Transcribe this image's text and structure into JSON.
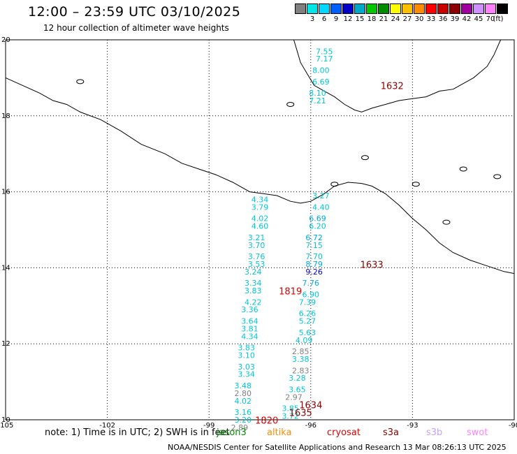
{
  "header": {
    "title": "12:00 – 23:59 UTC 03/10/2025",
    "subtitle": "12 hour collection of altimeter wave heights"
  },
  "color_scale": {
    "unit_label": "(ft)",
    "bins": [
      {
        "label": "",
        "color": "#808080"
      },
      {
        "label": "3",
        "color": "#00e5e5"
      },
      {
        "label": "6",
        "color": "#00d8ff"
      },
      {
        "label": "9",
        "color": "#0060ff"
      },
      {
        "label": "12",
        "color": "#0000c8"
      },
      {
        "label": "15",
        "color": "#00a8c8"
      },
      {
        "label": "18",
        "color": "#00c800"
      },
      {
        "label": "21",
        "color": "#008c00"
      },
      {
        "label": "24",
        "color": "#ffff00"
      },
      {
        "label": "27",
        "color": "#ffc000"
      },
      {
        "label": "30",
        "color": "#ff8c00"
      },
      {
        "label": "33",
        "color": "#ff0000"
      },
      {
        "label": "36",
        "color": "#c80000"
      },
      {
        "label": "39",
        "color": "#8c0000"
      },
      {
        "label": "42",
        "color": "#a000a0"
      },
      {
        "label": "45",
        "color": "#d090ff"
      },
      {
        "label": "70",
        "color": "#ff80ff"
      },
      {
        "label": "",
        "color": "#000000"
      }
    ]
  },
  "axes": {
    "lon_ticks": [
      "-105",
      "-102",
      "-99",
      "-96",
      "-93",
      "-90"
    ],
    "lat_ticks": [
      "10",
      "12",
      "14",
      "16",
      "18",
      "20"
    ]
  },
  "tracks": [
    {
      "time_label": "1632",
      "time_color": "#8c0000",
      "points": [
        {
          "lon": -95.6,
          "lat": 19.7,
          "v": "7.55",
          "c": "#00c8d8"
        },
        {
          "lon": -95.6,
          "lat": 19.5,
          "v": "7.17",
          "c": "#00c8d8"
        },
        {
          "lon": -95.7,
          "lat": 19.2,
          "v": "8.00",
          "c": "#00c8d8"
        },
        {
          "lon": -95.7,
          "lat": 18.9,
          "v": "6.69",
          "c": "#00c8d8"
        },
        {
          "lon": -95.8,
          "lat": 18.6,
          "v": "8.10",
          "c": "#00c8d8"
        },
        {
          "lon": -95.8,
          "lat": 18.4,
          "v": "7.21",
          "c": "#00c8d8"
        }
      ]
    },
    {
      "time_label": "1633",
      "time_color": "#8c0000",
      "points": [
        {
          "lon": -95.7,
          "lat": 15.9,
          "v": "3.27",
          "c": "#00c8d8"
        },
        {
          "lon": -95.7,
          "lat": 15.6,
          "v": "4.40",
          "c": "#00c8d8"
        },
        {
          "lon": -95.8,
          "lat": 15.3,
          "v": "6.69",
          "c": "#00a8e0"
        },
        {
          "lon": -95.8,
          "lat": 15.1,
          "v": "6.20",
          "c": "#00c8d8"
        },
        {
          "lon": -95.9,
          "lat": 14.8,
          "v": "6.72",
          "c": "#00a8e0"
        },
        {
          "lon": -95.9,
          "lat": 14.6,
          "v": "7.15",
          "c": "#00c8d8"
        },
        {
          "lon": -95.9,
          "lat": 14.3,
          "v": "7.70",
          "c": "#00c8d8"
        },
        {
          "lon": -95.9,
          "lat": 14.1,
          "v": "8.79",
          "c": "#00a8e0"
        },
        {
          "lon": -95.9,
          "lat": 13.9,
          "v": "9.26",
          "c": "#0000c8"
        },
        {
          "lon": -96.0,
          "lat": 13.6,
          "v": "7.76",
          "c": "#00a8e0"
        },
        {
          "lon": -96.0,
          "lat": 13.3,
          "v": "6.90",
          "c": "#00c8d8"
        },
        {
          "lon": -96.1,
          "lat": 13.1,
          "v": "7.39",
          "c": "#00c8d8"
        },
        {
          "lon": -96.1,
          "lat": 12.8,
          "v": "6.26",
          "c": "#00c8d8"
        },
        {
          "lon": -96.1,
          "lat": 12.6,
          "v": "5.27",
          "c": "#00c8d8"
        },
        {
          "lon": -96.1,
          "lat": 12.3,
          "v": "5.63",
          "c": "#00c8d8"
        },
        {
          "lon": -96.2,
          "lat": 12.1,
          "v": "4.09",
          "c": "#00c8d8"
        },
        {
          "lon": -96.3,
          "lat": 11.8,
          "v": "2.85",
          "c": "#808080"
        },
        {
          "lon": -96.3,
          "lat": 11.6,
          "v": "3.38",
          "c": "#00c8d8"
        },
        {
          "lon": -96.3,
          "lat": 11.3,
          "v": "2.83",
          "c": "#808080"
        },
        {
          "lon": -96.4,
          "lat": 11.1,
          "v": "3.28",
          "c": "#00c8d8"
        },
        {
          "lon": -96.4,
          "lat": 10.8,
          "v": "3.65",
          "c": "#00c8d8"
        },
        {
          "lon": -96.5,
          "lat": 10.6,
          "v": "2.97",
          "c": "#808080"
        },
        {
          "lon": -96.6,
          "lat": 10.3,
          "v": "3.85",
          "c": "#00c8d8"
        },
        {
          "lon": -96.6,
          "lat": 10.1,
          "v": "3.72",
          "c": "#00c8d8"
        }
      ]
    },
    {
      "time_label": "1819",
      "time_color": "#e00000",
      "points": [
        {
          "lon": -97.5,
          "lat": 15.8,
          "v": "4.34",
          "c": "#00c8d8"
        },
        {
          "lon": -97.5,
          "lat": 15.6,
          "v": "3.79",
          "c": "#00c8d8"
        },
        {
          "lon": -97.5,
          "lat": 15.3,
          "v": "4.02",
          "c": "#00c8d8"
        },
        {
          "lon": -97.5,
          "lat": 15.1,
          "v": "4.60",
          "c": "#00c8d8"
        },
        {
          "lon": -97.6,
          "lat": 14.8,
          "v": "3.21",
          "c": "#00c8d8"
        },
        {
          "lon": -97.6,
          "lat": 14.6,
          "v": "3.70",
          "c": "#00c8d8"
        },
        {
          "lon": -97.6,
          "lat": 14.3,
          "v": "3.76",
          "c": "#00c8d8"
        },
        {
          "lon": -97.6,
          "lat": 14.1,
          "v": "3.53",
          "c": "#00c8d8"
        },
        {
          "lon": -97.7,
          "lat": 13.9,
          "v": "3.24",
          "c": "#00c8d8"
        },
        {
          "lon": -97.7,
          "lat": 13.6,
          "v": "3.34",
          "c": "#00c8d8"
        },
        {
          "lon": -97.7,
          "lat": 13.4,
          "v": "3.83",
          "c": "#00c8d8"
        },
        {
          "lon": -97.7,
          "lat": 13.1,
          "v": "4.22",
          "c": "#00c8d8"
        },
        {
          "lon": -97.8,
          "lat": 12.9,
          "v": "3.36",
          "c": "#00c8d8"
        },
        {
          "lon": -97.8,
          "lat": 12.6,
          "v": "3.64",
          "c": "#00c8d8"
        },
        {
          "lon": -97.8,
          "lat": 12.4,
          "v": "3.81",
          "c": "#00c8d8"
        },
        {
          "lon": -97.8,
          "lat": 12.2,
          "v": "4.34",
          "c": "#00c8d8"
        },
        {
          "lon": -97.9,
          "lat": 11.9,
          "v": "3.83",
          "c": "#00c8d8"
        },
        {
          "lon": -97.9,
          "lat": 11.7,
          "v": "3.10",
          "c": "#00c8d8"
        },
        {
          "lon": -97.9,
          "lat": 11.4,
          "v": "3.03",
          "c": "#00c8d8"
        },
        {
          "lon": -97.9,
          "lat": 11.2,
          "v": "3.34",
          "c": "#00c8d8"
        },
        {
          "lon": -98.0,
          "lat": 10.9,
          "v": "3.48",
          "c": "#00c8d8"
        },
        {
          "lon": -98.0,
          "lat": 10.7,
          "v": "2.80",
          "c": "#808080"
        },
        {
          "lon": -98.0,
          "lat": 10.5,
          "v": "4.02",
          "c": "#00c8d8"
        },
        {
          "lon": -98.0,
          "lat": 10.2,
          "v": "3.16",
          "c": "#00c8d8"
        },
        {
          "lon": -98.0,
          "lat": 10.0,
          "v": "3.20",
          "c": "#00c8d8"
        },
        {
          "lon": -98.1,
          "lat": 9.8,
          "v": "2.89",
          "c": "#808080"
        }
      ]
    }
  ],
  "extra_time_labels": [
    {
      "text": "1634",
      "color": "#8c0000",
      "lon": -96.0,
      "lat": 10.3
    },
    {
      "text": "1635",
      "color": "#8c0000",
      "lon": -96.3,
      "lat": 10.1
    },
    {
      "text": "1820",
      "color": "#e00000",
      "lon": -97.3,
      "lat": 9.9
    }
  ],
  "footer": {
    "note": "note:  1) Time is in UTC; 2) SWH is in feet",
    "satellites": [
      {
        "name": "jason3",
        "color": "#008c00"
      },
      {
        "name": "altika",
        "color": "#ff8c00"
      },
      {
        "name": "cryosat",
        "color": "#e00000"
      },
      {
        "name": "s3a",
        "color": "#8c0000"
      },
      {
        "name": "s3b",
        "color": "#c8a0ff"
      },
      {
        "name": "swot",
        "color": "#ff80ff"
      }
    ],
    "credit": "NOAA/NESDIS Center for Satellite Applications and Research    13 Mar 08:26:13 UTC 2025"
  }
}
